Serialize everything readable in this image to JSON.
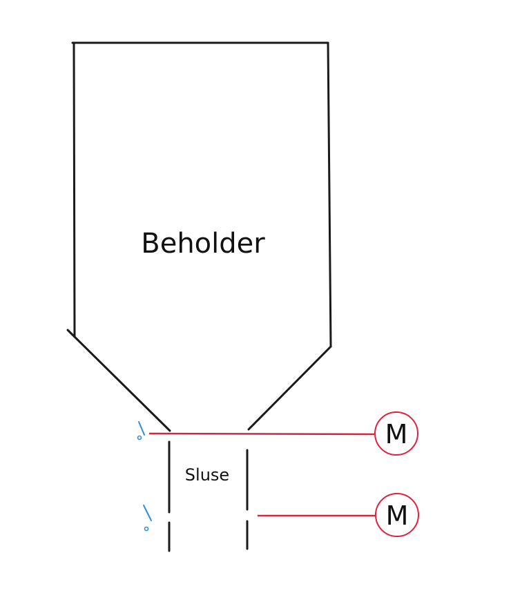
{
  "labels": {
    "container": "Beholder",
    "airlock": "Sluse"
  },
  "motors": [
    {
      "symbol": "M"
    },
    {
      "symbol": "M"
    }
  ],
  "colors": {
    "outline": "#1a1a1a",
    "motor_wire": "#e0203a",
    "sensor": "#2f8fd8"
  },
  "icons": [
    "limit-switch-icon",
    "motor-symbol-icon"
  ]
}
